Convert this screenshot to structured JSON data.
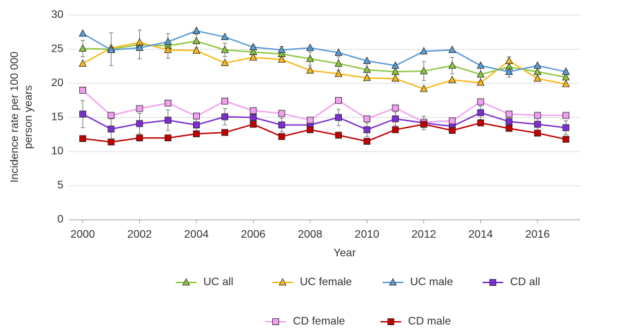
{
  "chart_data": {
    "type": "line",
    "y_label": [
      "Incidence rate per 100 000",
      "person years"
    ],
    "x_label": "Year",
    "x": [
      2000,
      2001,
      2002,
      2003,
      2004,
      2005,
      2006,
      2007,
      2008,
      2009,
      2010,
      2011,
      2012,
      2013,
      2014,
      2015,
      2016,
      2017
    ],
    "xlim": [
      2000,
      2017
    ],
    "xticks": [
      2000,
      2002,
      2004,
      2006,
      2008,
      2010,
      2012,
      2014,
      2016
    ],
    "ylim": [
      0,
      30
    ],
    "yticks": [
      0,
      5,
      10,
      15,
      20,
      25,
      30
    ],
    "grid": true,
    "legend": "bottom",
    "series": [
      {
        "name": "UC all",
        "color": "#8dc63f",
        "marker": "triangle",
        "values": [
          25.1,
          25.0,
          25.7,
          25.5,
          26.2,
          24.9,
          24.6,
          24.3,
          23.6,
          22.9,
          22.0,
          21.7,
          21.8,
          22.6,
          21.3,
          22.4,
          21.7,
          20.9
        ],
        "errors": [
          1.2,
          2.4,
          2.1,
          1.8,
          1.0,
          1.0,
          1.0,
          1.1,
          1.0,
          1.0,
          1.0,
          1.0,
          1.4,
          1.2,
          1.0,
          1.5,
          1.0,
          1.0
        ]
      },
      {
        "name": "UC female",
        "color": "#f6b91a",
        "marker": "triangle",
        "values": [
          22.9,
          25.2,
          26.0,
          24.9,
          24.8,
          23.0,
          23.8,
          23.5,
          21.9,
          21.4,
          20.8,
          20.7,
          19.2,
          20.5,
          20.1,
          23.3,
          20.7,
          19.9
        ]
      },
      {
        "name": "UC male",
        "color": "#5b9bd5",
        "marker": "triangle",
        "values": [
          27.3,
          24.9,
          25.2,
          26.1,
          27.7,
          26.8,
          25.3,
          24.9,
          25.2,
          24.5,
          23.3,
          22.6,
          24.7,
          24.9,
          22.6,
          21.7,
          22.6,
          21.7
        ]
      },
      {
        "name": "CD all",
        "color": "#7b2fd0",
        "marker": "square",
        "values": [
          15.5,
          13.3,
          14.1,
          14.6,
          13.9,
          15.1,
          15.0,
          13.9,
          13.9,
          15.0,
          13.2,
          14.8,
          14.2,
          13.7,
          15.7,
          14.4,
          14.0,
          13.5
        ],
        "errors": [
          2.0,
          1.5,
          1.5,
          1.5,
          1.2,
          1.2,
          1.2,
          1.0,
          1.0,
          1.2,
          1.0,
          1.0,
          1.0,
          1.0,
          1.0,
          1.0,
          1.0,
          1.0
        ]
      },
      {
        "name": "CD female",
        "color": "#f19ff0",
        "marker": "square",
        "values": [
          19.0,
          15.3,
          16.3,
          17.1,
          15.2,
          17.4,
          16.0,
          15.6,
          14.6,
          17.5,
          14.8,
          16.4,
          14.3,
          14.5,
          17.3,
          15.5,
          15.3,
          15.3
        ]
      },
      {
        "name": "CD male",
        "color": "#c00000",
        "marker": "square",
        "values": [
          11.9,
          11.4,
          12.0,
          12.0,
          12.6,
          12.8,
          14.0,
          12.2,
          13.2,
          12.4,
          11.5,
          13.2,
          14.0,
          13.1,
          14.2,
          13.4,
          12.7,
          11.8
        ]
      }
    ]
  }
}
